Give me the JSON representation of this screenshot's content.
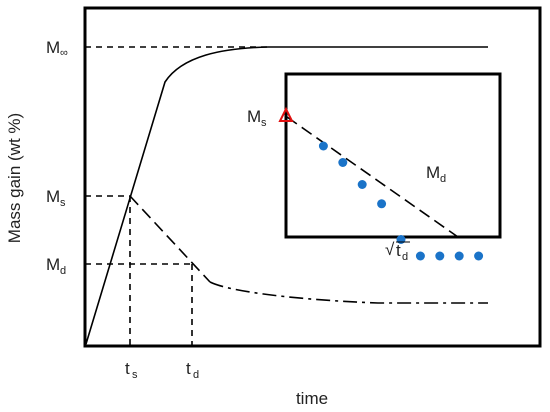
{
  "chart_data": {
    "type": "line",
    "title": "",
    "xlabel": "time",
    "ylabel": "Mass gain (wt %)",
    "grid": false,
    "y_levels": {
      "M_inf": {
        "main": "M",
        "sub": "∞"
      },
      "M_s": {
        "main": "M",
        "sub": "s"
      },
      "M_d": {
        "main": "M",
        "sub": "d"
      }
    },
    "x_ticks": {
      "t_s": {
        "main": "t",
        "sub": "s"
      },
      "t_d": {
        "main": "t",
        "sub": "d"
      }
    },
    "inset": {
      "ylabel_Ms": {
        "main": "M",
        "sub": "s"
      },
      "label_Md": {
        "main": "M",
        "sub": "d"
      },
      "xlabel": {
        "radical": "√",
        "main": "t",
        "sub": "d"
      },
      "marker": "red triangle",
      "point_color": "#1a73c8",
      "points": [
        {
          "x": 1,
          "y": 6.0
        },
        {
          "x": 2,
          "y": 5.4
        },
        {
          "x": 3,
          "y": 4.6
        },
        {
          "x": 4,
          "y": 3.9
        },
        {
          "x": 5,
          "y": 2.6
        },
        {
          "x": 6,
          "y": 2.0
        },
        {
          "x": 7,
          "y": 2.0
        },
        {
          "x": 8,
          "y": 2.0
        },
        {
          "x": 9,
          "y": 2.0
        }
      ]
    },
    "colors": {
      "line": "#000000",
      "marker": "#e01010",
      "points": "#1a73c8"
    }
  }
}
